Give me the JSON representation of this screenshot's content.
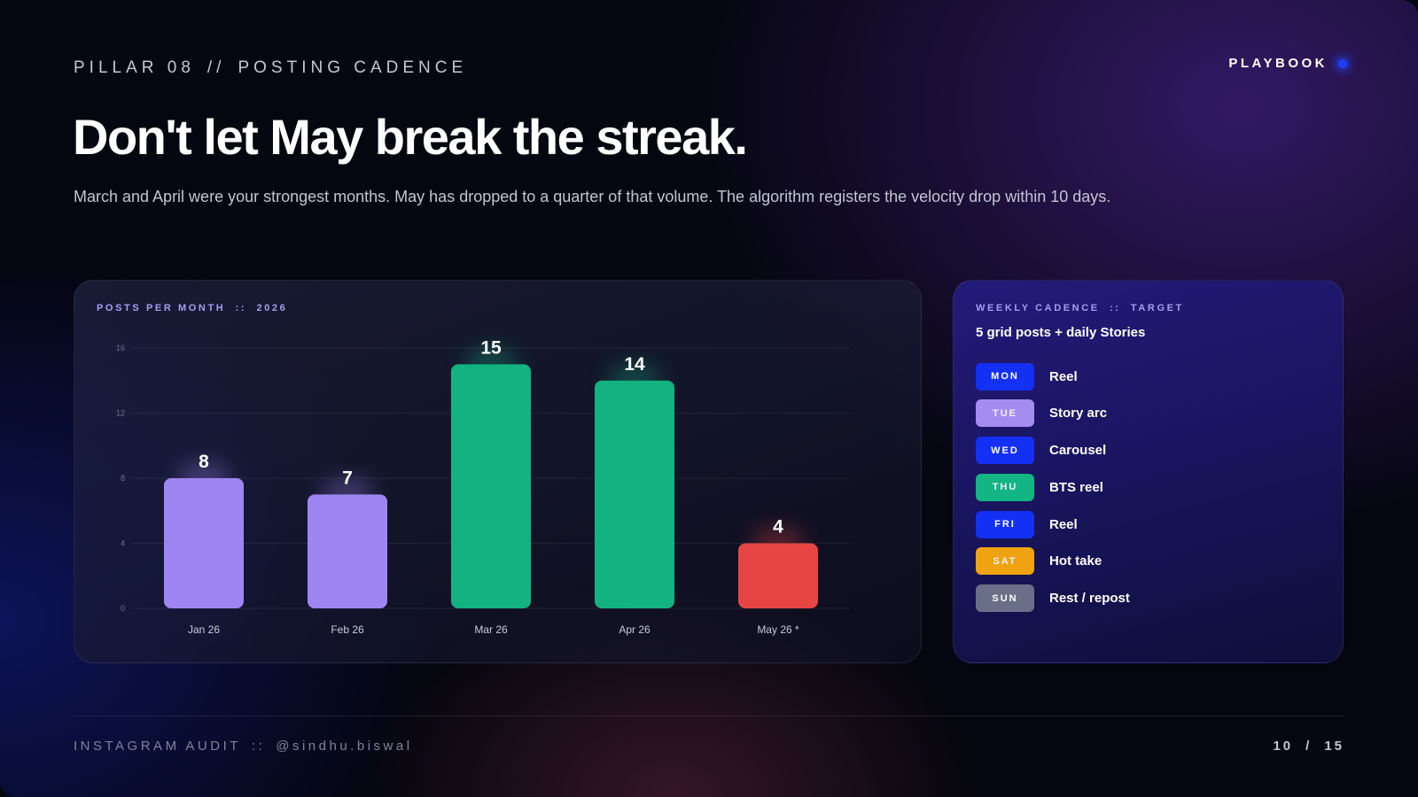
{
  "header": {
    "pillar": "PILLAR 08",
    "separator": "//",
    "section": "POSTING CADENCE",
    "badge": "PLAYBOOK",
    "title": "Don't let May break the streak.",
    "subtitle": "March and April were your strongest months. May has dropped to a quarter of that volume. The algorithm registers the velocity drop within 10 days."
  },
  "chart_card": {
    "label": "POSTS PER MONTH  ::  2026"
  },
  "chart_data": {
    "type": "bar",
    "title": "POSTS PER MONTH :: 2026",
    "categories": [
      "Jan 26",
      "Feb 26",
      "Mar 26",
      "Apr 26",
      "May 26 *"
    ],
    "values": [
      8,
      7,
      15,
      14,
      4
    ],
    "ylim": [
      0,
      16
    ],
    "yticks": [
      0,
      4,
      8,
      12,
      16
    ],
    "grid": true,
    "bar_colors": [
      "#9f85f2",
      "#9f85f2",
      "#12b381",
      "#12b381",
      "#e64543"
    ],
    "xlabel": "",
    "ylabel": ""
  },
  "cadence": {
    "label": "WEEKLY CADENCE  ::  TARGET",
    "subtitle": "5 grid posts + daily Stories",
    "days": [
      {
        "day": "MON",
        "activity": "Reel",
        "color": "#1430f5"
      },
      {
        "day": "TUE",
        "activity": "Story arc",
        "color": "#a58cf0"
      },
      {
        "day": "WED",
        "activity": "Carousel",
        "color": "#1430f5"
      },
      {
        "day": "THU",
        "activity": "BTS reel",
        "color": "#13b582"
      },
      {
        "day": "FRI",
        "activity": "Reel",
        "color": "#1430f5"
      },
      {
        "day": "SAT",
        "activity": "Hot take",
        "color": "#f0a310"
      },
      {
        "day": "SUN",
        "activity": "Rest / repost",
        "color": "#6a6f88"
      }
    ]
  },
  "footer": {
    "audit": "INSTAGRAM AUDIT",
    "separator": "::",
    "handle": "@sindhu.biswal",
    "page_current": "10",
    "page_separator": "/",
    "page_total": "15"
  }
}
